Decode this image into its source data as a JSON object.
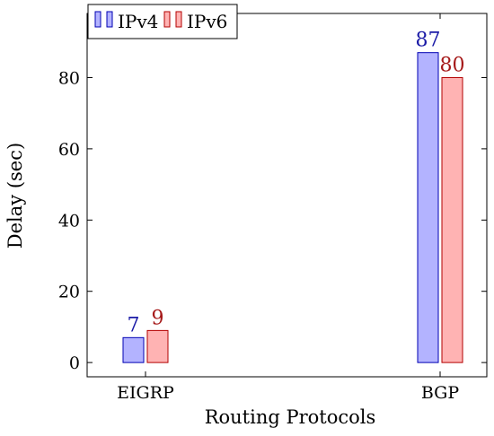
{
  "chart_data": {
    "type": "bar",
    "categories": [
      "EIGRP",
      "BGP"
    ],
    "series": [
      {
        "name": "IPv4",
        "values": [
          7,
          87
        ],
        "fill": "#b3b3ff",
        "stroke": "#0000b3",
        "label_color": "#1a1aa6"
      },
      {
        "name": "IPv6",
        "values": [
          9,
          80
        ],
        "fill": "#ffb3b3",
        "stroke": "#b30000",
        "label_color": "#a61a1a"
      }
    ],
    "xlabel": "Routing Protocols",
    "ylabel": "Delay (sec)",
    "ylim": [
      -4,
      98
    ],
    "yticks": [
      0,
      20,
      40,
      60,
      80
    ],
    "ytick_labels": [
      "0",
      "20",
      "40",
      "60",
      "80"
    ],
    "legend_position": "top-left",
    "grid": false
  }
}
